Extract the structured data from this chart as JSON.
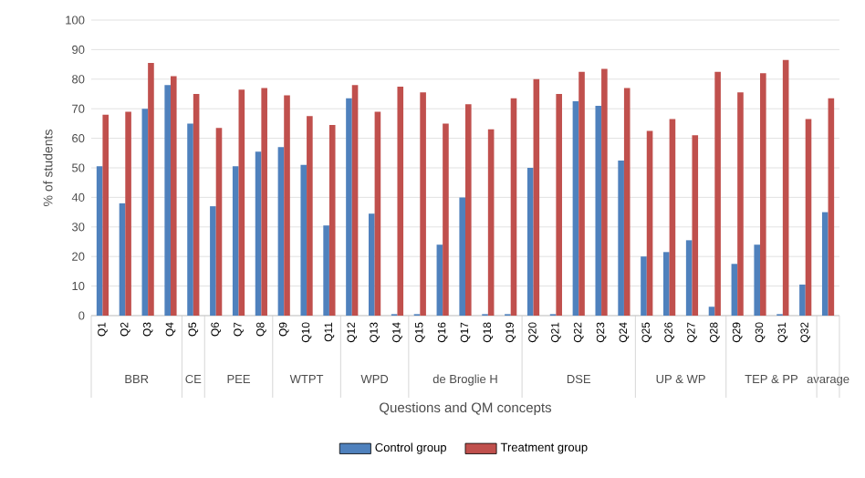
{
  "chart_data": {
    "type": "bar",
    "xlabel": "Questions and QM concepts",
    "ylabel": "% of students",
    "categories": [
      "Q1",
      "Q2",
      "Q3",
      "Q4",
      "Q5",
      "Q6",
      "Q7",
      "Q8",
      "Q9",
      "Q10",
      "Q11",
      "Q12",
      "Q13",
      "Q14",
      "Q15",
      "Q16",
      "Q17",
      "Q18",
      "Q19",
      "Q20",
      "Q21",
      "Q22",
      "Q23",
      "Q24",
      "Q25",
      "Q26",
      "Q27",
      "Q28",
      "Q29",
      "Q30",
      "Q31",
      "Q32",
      null
    ],
    "series": [
      {
        "name": "Control group",
        "color": "#4f81bd",
        "values": [
          50.5,
          38,
          70,
          78,
          65,
          37,
          50.5,
          55.5,
          57,
          51,
          30.5,
          73.5,
          34.5,
          0.5,
          0.5,
          24,
          40,
          0.5,
          0.5,
          50,
          0.5,
          72.5,
          71,
          52.5,
          20,
          21.5,
          25.5,
          3,
          17.5,
          24,
          0.5,
          10.5,
          35
        ]
      },
      {
        "name": "Treatment group",
        "color": "#c0504d",
        "values": [
          68,
          69,
          85.5,
          81,
          75,
          63.5,
          76.5,
          77,
          74.5,
          67.5,
          64.5,
          78,
          69,
          77.5,
          75.5,
          65,
          71.5,
          63,
          73.5,
          80,
          75,
          82.5,
          83.5,
          77,
          62.5,
          66.5,
          61,
          82.5,
          75.5,
          82,
          86.5,
          66.5,
          73.5
        ]
      }
    ],
    "annotations": [
      "BBR",
      "CE",
      "PEE",
      "WTPT",
      "WPD",
      "de Broglie H",
      "DSE",
      "UP & WP",
      "TEP & PP",
      "avarage"
    ],
    "ylim": [
      0,
      100
    ],
    "yticks": [
      0,
      10,
      20,
      30,
      40,
      50,
      60,
      70,
      80,
      90,
      100
    ],
    "grid": "y",
    "legend": "bottom"
  }
}
